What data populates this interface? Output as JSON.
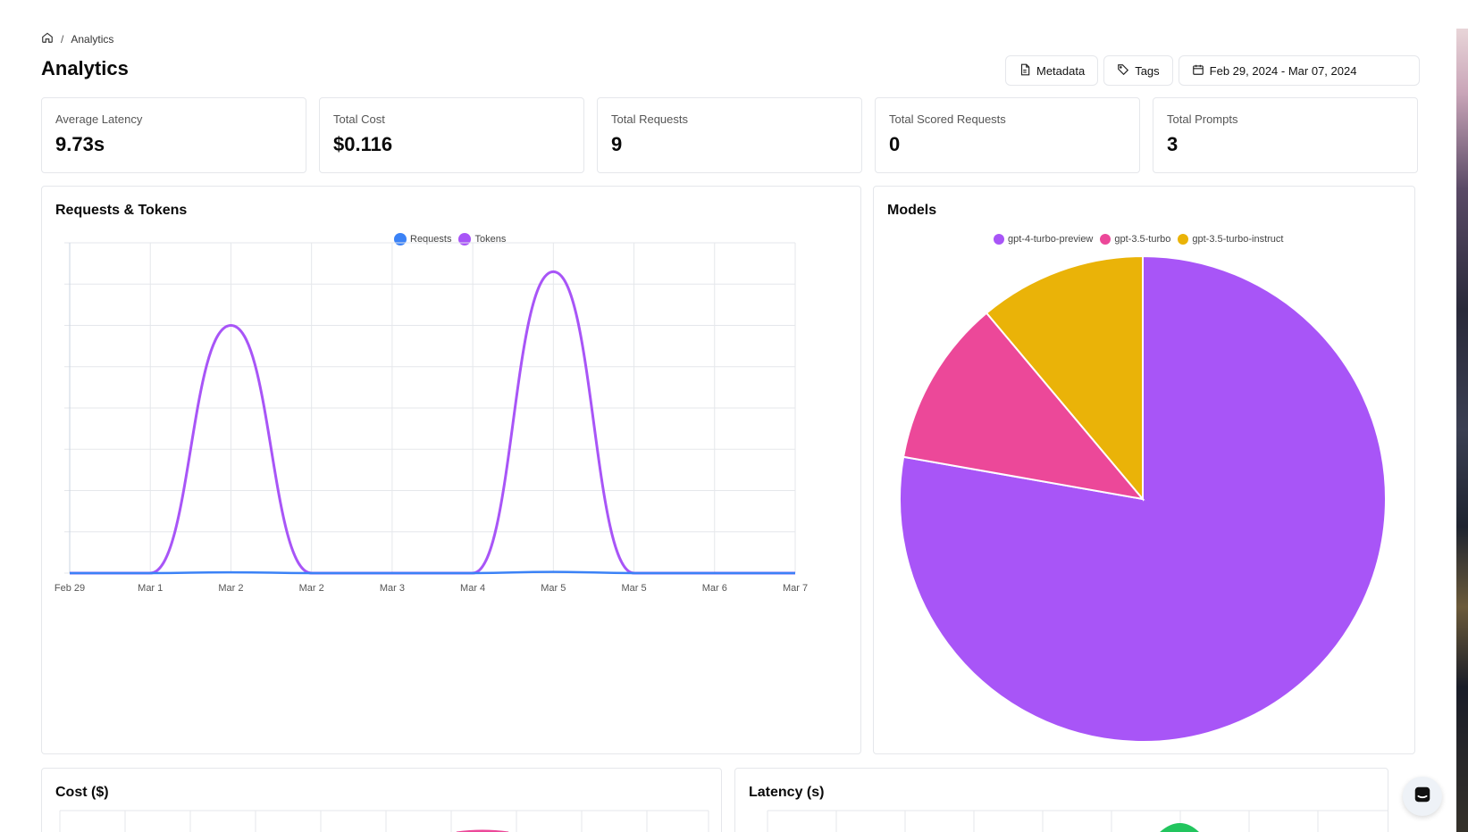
{
  "breadcrumb": {
    "current": "Analytics"
  },
  "header": {
    "title": "Analytics"
  },
  "toolbar": {
    "metadata_label": "Metadata",
    "tags_label": "Tags",
    "date_range": "Feb 29, 2024 - Mar 07, 2024"
  },
  "stats": [
    {
      "label": "Average Latency",
      "value": "9.73s"
    },
    {
      "label": "Total Cost",
      "value": "$0.116"
    },
    {
      "label": "Total Requests",
      "value": "9"
    },
    {
      "label": "Total Scored Requests",
      "value": "0"
    },
    {
      "label": "Total Prompts",
      "value": "3"
    }
  ],
  "requests_card": {
    "title": "Requests & Tokens"
  },
  "models_card": {
    "title": "Models"
  },
  "cost_card": {
    "title": "Cost ($)"
  },
  "latency_card": {
    "title": "Latency (s)"
  },
  "colors": {
    "requests": "#3b82f6",
    "tokens": "#a855f7",
    "gpt4": "#a855f7",
    "gpt35": "#ec4899",
    "instruct": "#eab308",
    "latency": "#22c55e"
  },
  "chart_data": [
    {
      "type": "line",
      "title": "Requests & Tokens",
      "legend_position": "top-center",
      "categories": [
        "Feb 29",
        "Mar 1",
        "Mar 2",
        "Mar 2",
        "Mar 3",
        "Mar 4",
        "Mar 5",
        "Mar 5",
        "Mar 6",
        "Mar 7"
      ],
      "x": [
        0,
        1,
        2,
        3,
        4,
        5,
        6,
        7,
        8,
        9
      ],
      "series": [
        {
          "name": "Requests",
          "values": [
            0,
            0,
            1,
            0,
            0,
            0,
            1.5,
            0,
            0,
            0
          ]
        },
        {
          "name": "Tokens",
          "values": [
            0,
            0,
            300,
            0,
            0,
            0,
            365,
            0,
            0,
            0
          ]
        }
      ],
      "ylim": [
        0,
        400
      ],
      "grid": true
    },
    {
      "type": "pie",
      "title": "Models",
      "legend_position": "top-center",
      "slices": [
        {
          "label": "gpt-4-turbo-preview",
          "value": 7
        },
        {
          "label": "gpt-3.5-turbo",
          "value": 1
        },
        {
          "label": "gpt-3.5-turbo-instruct",
          "value": 1
        }
      ]
    }
  ]
}
